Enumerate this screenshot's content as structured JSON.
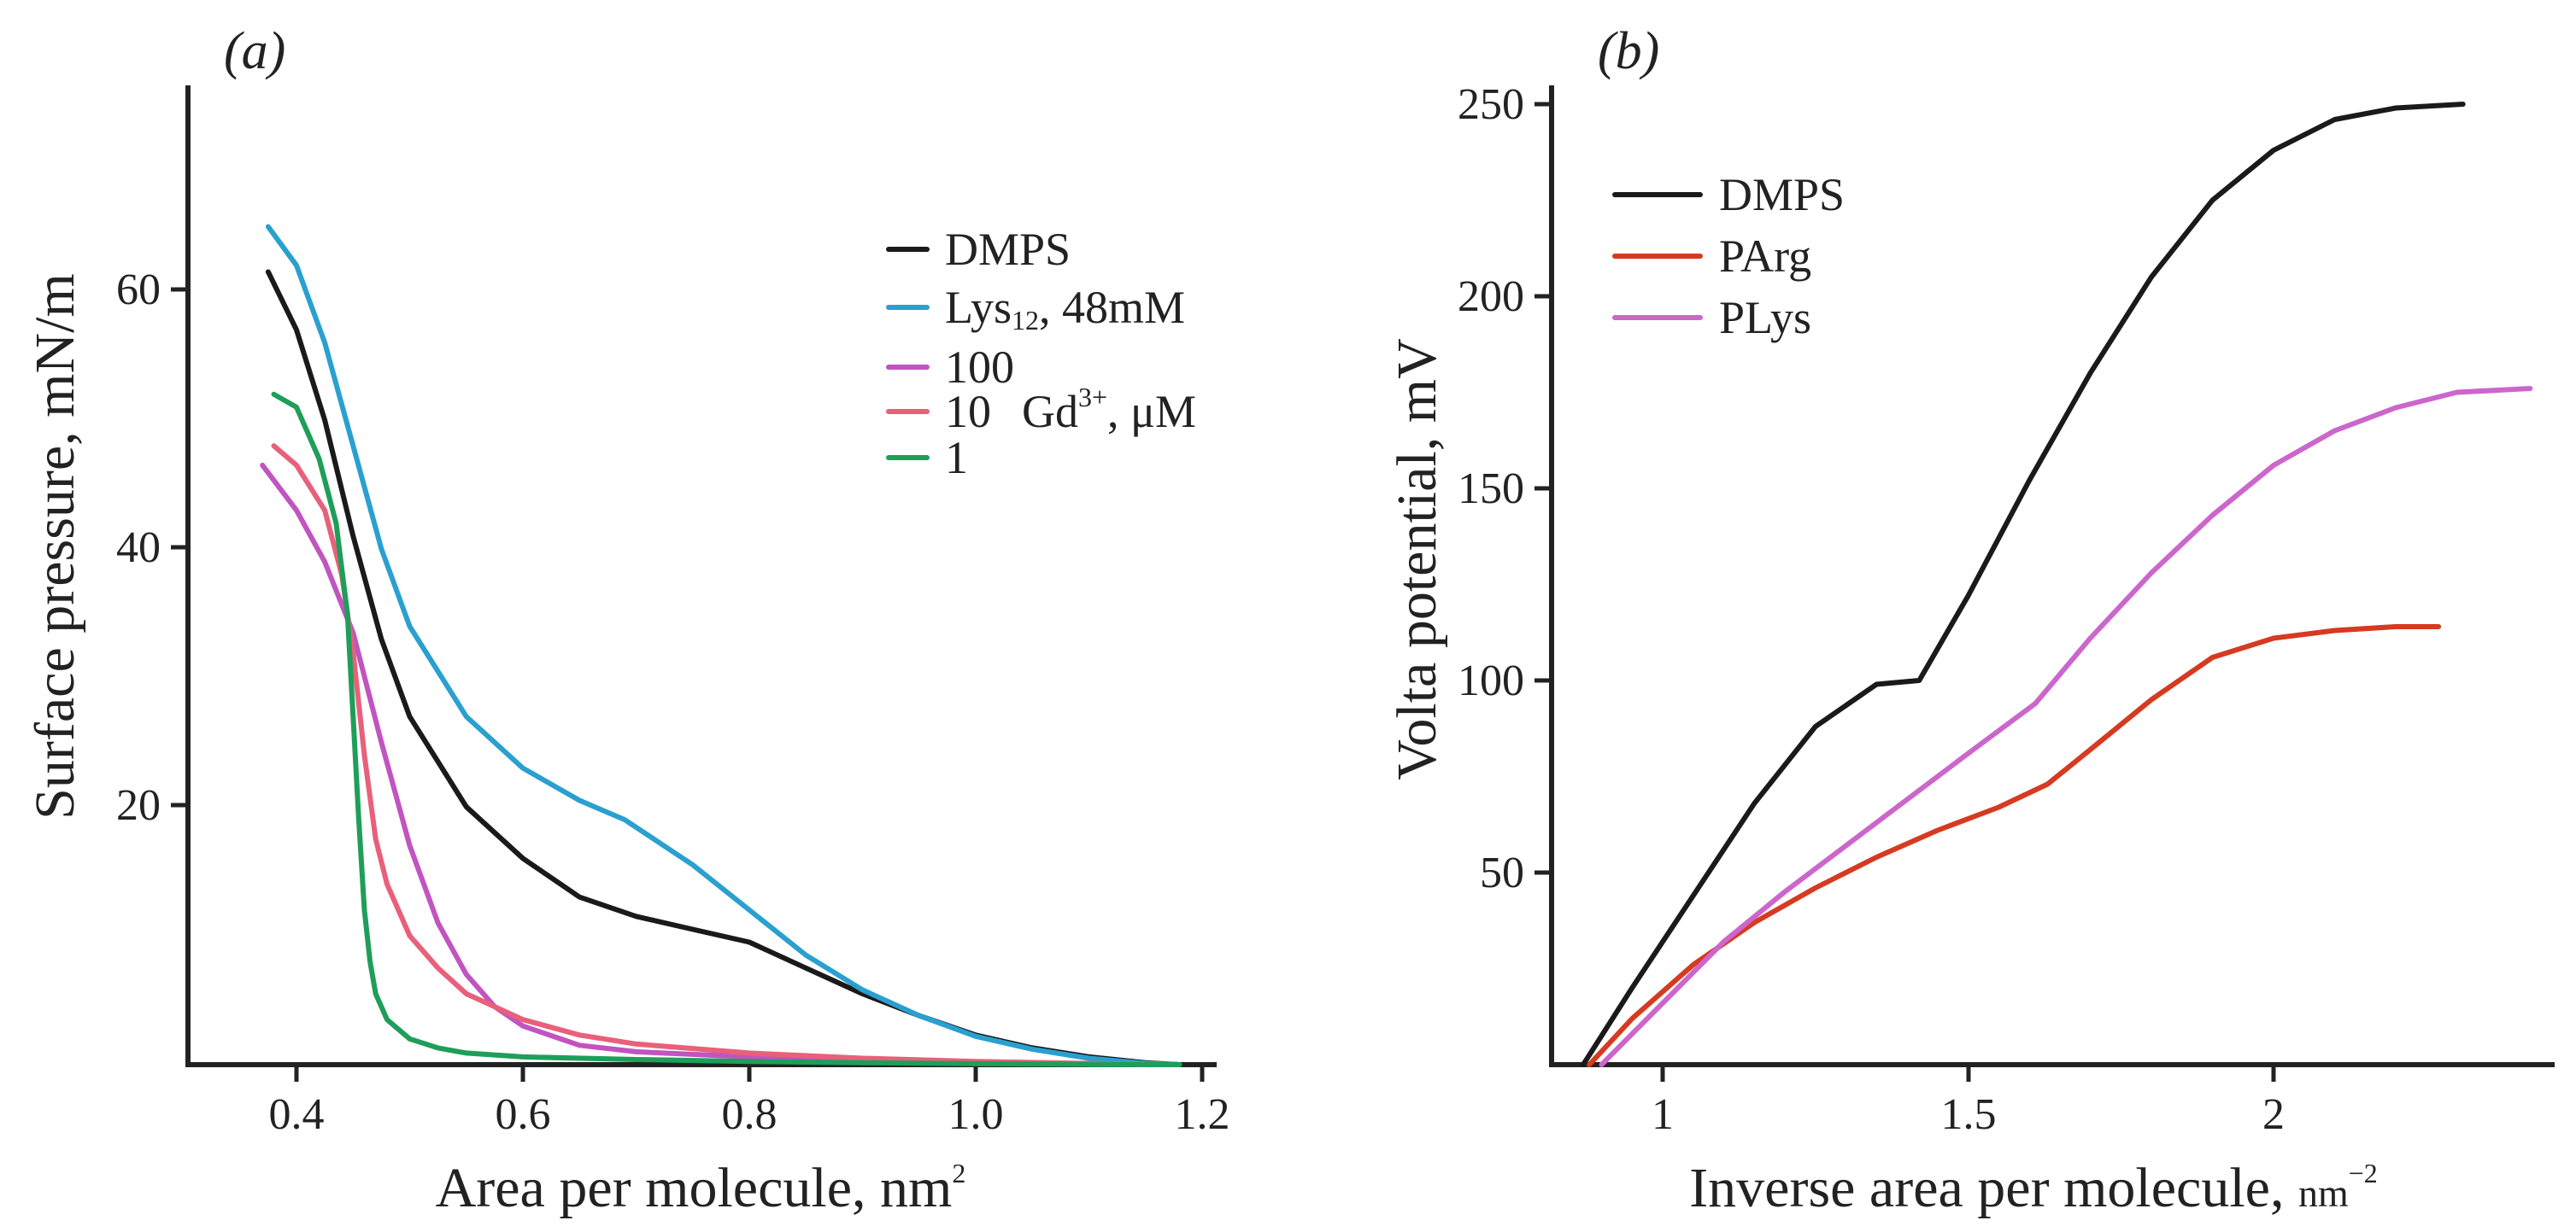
{
  "colors": {
    "DMPS": "#1a1a1a",
    "Lys12_48mM": "#2aa0d0",
    "Gd_100": "#c154c1",
    "Gd_10": "#e8607a",
    "Gd_1": "#1f9e5a",
    "PArg": "#d63a20",
    "PLys": "#cc66cc"
  },
  "chart_data": [
    {
      "type": "line",
      "panel_label": "(a)",
      "xlabel": "Area per molecule, nm",
      "xlabel_sup": "2",
      "ylabel": "Surface pressure, mN/m",
      "xlim": [
        0.3,
        1.22
      ],
      "ylim": [
        0,
        76
      ],
      "x_ticks": [
        "0.4",
        "0.6",
        "0.8",
        "1.0",
        "1.2"
      ],
      "y_ticks": [
        "20",
        "40",
        "60"
      ],
      "legend": {
        "DMPS": "DMPS",
        "lys_main": "Lys",
        "lys_sub": "12",
        "lys_tail": ", 48mM",
        "gd100": "100",
        "gd10": "10",
        "gd_prefix": "Gd",
        "gd_sup": "3+",
        "gd_unit": ", μM",
        "gd1": "1"
      },
      "series": [
        {
          "name": "DMPS",
          "color_key": "DMPS",
          "x": [
            0.375,
            0.4,
            0.425,
            0.45,
            0.475,
            0.5,
            0.55,
            0.6,
            0.65,
            0.7,
            0.75,
            0.8,
            0.85,
            0.9,
            0.95,
            1.0,
            1.05,
            1.1,
            1.15,
            1.18
          ],
          "y": [
            61.5,
            57,
            50,
            41,
            33,
            27,
            20,
            16,
            13,
            11.5,
            10.5,
            9.5,
            7.5,
            5.5,
            3.8,
            2.3,
            1.3,
            0.6,
            0.15,
            0
          ]
        },
        {
          "name": "Lys12, 48mM",
          "color_key": "Lys12_48mM",
          "x": [
            0.375,
            0.4,
            0.425,
            0.45,
            0.475,
            0.5,
            0.55,
            0.6,
            0.65,
            0.69,
            0.75,
            0.8,
            0.85,
            0.9,
            0.95,
            1.0,
            1.05,
            1.1,
            1.15,
            1.18
          ],
          "y": [
            65,
            62,
            56,
            48,
            40,
            34,
            27,
            23,
            20.5,
            19,
            15.5,
            12,
            8.5,
            5.8,
            3.8,
            2.2,
            1.2,
            0.5,
            0.1,
            0
          ]
        },
        {
          "name": "Gd3+ 100 μM",
          "color_key": "Gd_100",
          "x": [
            0.37,
            0.4,
            0.425,
            0.45,
            0.475,
            0.5,
            0.525,
            0.55,
            0.575,
            0.6,
            0.65,
            0.7,
            0.8,
            0.9,
            1.0,
            1.1,
            1.18
          ],
          "y": [
            46.5,
            43,
            39,
            33.5,
            25,
            17,
            11,
            7,
            4.5,
            3,
            1.5,
            1.0,
            0.6,
            0.35,
            0.15,
            0.05,
            0
          ]
        },
        {
          "name": "Gd3+ 10 μM",
          "color_key": "Gd_10",
          "x": [
            0.38,
            0.4,
            0.425,
            0.44,
            0.45,
            0.46,
            0.47,
            0.48,
            0.5,
            0.525,
            0.55,
            0.6,
            0.65,
            0.7,
            0.8,
            0.9,
            1.0,
            1.1,
            1.18
          ],
          "y": [
            48,
            46.5,
            43,
            38,
            32,
            24,
            17.5,
            14,
            10,
            7.5,
            5.5,
            3.5,
            2.3,
            1.6,
            0.9,
            0.5,
            0.25,
            0.1,
            0
          ]
        },
        {
          "name": "Gd3+ 1 μM",
          "color_key": "Gd_1",
          "x": [
            0.38,
            0.4,
            0.42,
            0.435,
            0.445,
            0.45,
            0.455,
            0.46,
            0.465,
            0.47,
            0.48,
            0.5,
            0.525,
            0.55,
            0.6,
            0.7,
            0.8,
            0.9,
            1.0,
            1.1,
            1.18
          ],
          "y": [
            52,
            51,
            47,
            42,
            35,
            27,
            19,
            12,
            8,
            5.5,
            3.5,
            2,
            1.3,
            0.9,
            0.6,
            0.4,
            0.25,
            0.15,
            0.07,
            0.02,
            0
          ]
        }
      ]
    },
    {
      "type": "line",
      "panel_label": "(b)",
      "xlabel": "Inverse area per molecule, ",
      "xlabel_unit": "nm",
      "xlabel_sup": "−2",
      "ylabel": "Volta potential, mV",
      "xlim": [
        0.83,
        2.43
      ],
      "ylim": [
        0,
        255
      ],
      "x_ticks": [
        "1",
        "1.5",
        "2"
      ],
      "y_ticks": [
        "50",
        "100",
        "150",
        "200",
        "250"
      ],
      "series": [
        {
          "name": "DMPS",
          "color_key": "DMPS",
          "x": [
            0.87,
            0.95,
            1.05,
            1.15,
            1.25,
            1.35,
            1.42,
            1.5,
            1.6,
            1.7,
            1.8,
            1.9,
            2.0,
            2.1,
            2.2,
            2.31
          ],
          "y": [
            0,
            20,
            44,
            68,
            88,
            99,
            100,
            122,
            152,
            180,
            205,
            225,
            238,
            246,
            249,
            250
          ]
        },
        {
          "name": "PArg",
          "color_key": "PArg",
          "x": [
            0.88,
            0.95,
            1.05,
            1.15,
            1.25,
            1.35,
            1.45,
            1.55,
            1.63,
            1.7,
            1.8,
            1.9,
            2.0,
            2.1,
            2.2,
            2.27
          ],
          "y": [
            0,
            12,
            26,
            37,
            46,
            54,
            61,
            67,
            73,
            82,
            95,
            106,
            111,
            113,
            114,
            114
          ]
        },
        {
          "name": "PLys",
          "color_key": "PLys",
          "x": [
            0.9,
            1.0,
            1.1,
            1.2,
            1.3,
            1.4,
            1.5,
            1.61,
            1.7,
            1.8,
            1.9,
            2.0,
            2.1,
            2.2,
            2.3,
            2.42
          ],
          "y": [
            0,
            16,
            32,
            45,
            57,
            69,
            81,
            94,
            111,
            128,
            143,
            156,
            165,
            171,
            175,
            176
          ]
        }
      ],
      "legend": {
        "DMPS": "DMPS",
        "PArg": "PArg",
        "PLys": "PLys"
      }
    }
  ]
}
